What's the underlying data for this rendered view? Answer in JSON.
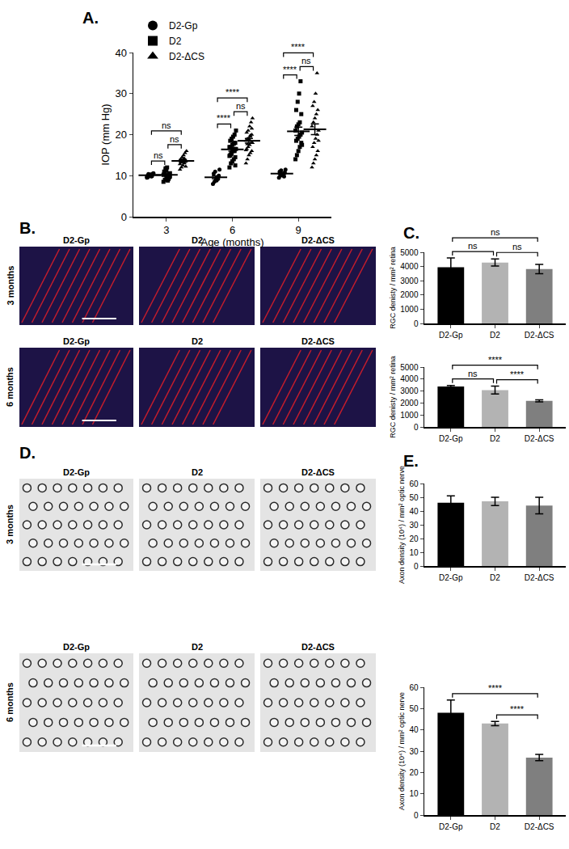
{
  "chart_data": [
    {
      "type": "scatter",
      "title": "A.",
      "xlabel": "Age (months)",
      "ylabel": "IOP (mm Hg)",
      "categories": [
        "3",
        "6",
        "9"
      ],
      "ylim": [
        0,
        40
      ],
      "yticks": [
        0,
        10,
        20,
        30,
        40
      ],
      "legend": "top left",
      "grid": false,
      "series": [
        {
          "name": "D2-Gp",
          "color": "#000000",
          "marker": "circle",
          "values": [
            [
              9.5,
              10,
              10.2,
              9.8,
              10.5,
              9.6,
              10.1,
              10.3,
              9.9,
              10.6,
              9.7,
              10.4
            ],
            [
              8,
              8.5,
              9,
              9.5,
              10,
              10.5,
              11,
              8.8,
              9.2,
              11.5
            ],
            [
              9.5,
              10,
              10.2,
              10.5,
              10.8,
              11,
              11.3,
              10.3,
              9.8,
              11.5
            ]
          ],
          "means": [
            10.1,
            9.6,
            10.5
          ],
          "sem": [
            0.1,
            0.35,
            0.2
          ]
        },
        {
          "name": "D2",
          "color": "#000000",
          "marker": "square",
          "values": [
            [
              8.5,
              9,
              9.5,
              10,
              10.5,
              11,
              11.5,
              12,
              9.2,
              9.8,
              10.2,
              10.8,
              11.2,
              8.8,
              9.6,
              10.4,
              11.8,
              10,
              9.4,
              10.6
            ],
            [
              12,
              13,
              13.5,
              14,
              14.5,
              15,
              15.5,
              16,
              16,
              16.5,
              17,
              17,
              17.5,
              18,
              18,
              18.5,
              19,
              19.5,
              20,
              21,
              14.8,
              15.2,
              16.3,
              17.8,
              12.5
            ],
            [
              14,
              15,
              16,
              17,
              18,
              18.5,
              19,
              19.5,
              20,
              20.5,
              21,
              22,
              22.5,
              23,
              25,
              26,
              28,
              30,
              33,
              17.5
            ]
          ],
          "means": [
            10.2,
            16.4,
            20.8
          ],
          "sem": [
            0.25,
            0.45,
            1.0
          ]
        },
        {
          "name": "D2-ΔCS",
          "color": "#000000",
          "marker": "triangle-up",
          "values": [
            [
              11.5,
              12,
              12.5,
              13,
              13.5,
              14,
              14.5,
              15,
              15.5,
              16,
              12.8,
              13.2,
              13.8,
              14.2,
              12.2
            ],
            [
              13,
              14,
              15,
              15.5,
              16,
              16.5,
              17,
              17.5,
              18,
              18,
              18.5,
              19,
              19,
              19.5,
              20,
              20.5,
              21,
              22,
              23,
              24,
              16.2,
              17.7,
              18.8,
              19.8,
              21.5
            ],
            [
              12,
              13,
              14,
              15,
              16,
              17,
              18,
              19,
              20,
              21,
              22,
              23,
              24,
              25,
              26,
              27,
              28,
              30,
              35,
              18.5
            ]
          ],
          "means": [
            13.6,
            18.5,
            21.3
          ],
          "sem": [
            0.35,
            0.55,
            1.3
          ]
        }
      ],
      "comparisons": [
        {
          "at": "3",
          "from": "D2-Gp",
          "to": "D2",
          "label": "ns"
        },
        {
          "at": "3",
          "from": "D2",
          "to": "D2-ΔCS",
          "label": "ns"
        },
        {
          "at": "3",
          "from": "D2-Gp",
          "to": "D2-ΔCS",
          "label": "ns"
        },
        {
          "at": "6",
          "from": "D2-Gp",
          "to": "D2",
          "label": "****"
        },
        {
          "at": "6",
          "from": "D2",
          "to": "D2-ΔCS",
          "label": "ns"
        },
        {
          "at": "6",
          "from": "D2-Gp",
          "to": "D2-ΔCS",
          "label": "****"
        },
        {
          "at": "9",
          "from": "D2-Gp",
          "to": "D2",
          "label": "****"
        },
        {
          "at": "9",
          "from": "D2",
          "to": "D2-ΔCS",
          "label": "ns"
        },
        {
          "at": "9",
          "from": "D2-Gp",
          "to": "D2-ΔCS",
          "label": "****"
        }
      ]
    },
    {
      "type": "bar",
      "title": "C.",
      "ylabel": "RGC denisty / mm² retina",
      "categories": [
        "D2-Gp",
        "D2",
        "D2-ΔCS"
      ],
      "values": [
        3950,
        4280,
        3820
      ],
      "errors": [
        650,
        250,
        330
      ],
      "colors": [
        "#000000",
        "#b3b3b3",
        "#7f7f7f"
      ],
      "ylim": [
        0,
        5000
      ],
      "yticks": [
        0,
        1000,
        2000,
        3000,
        4000,
        5000
      ],
      "grid": false,
      "comparisons": [
        {
          "from": "D2-Gp",
          "to": "D2",
          "label": "ns"
        },
        {
          "from": "D2",
          "to": "D2-ΔCS",
          "label": "ns"
        },
        {
          "from": "D2-Gp",
          "to": "D2-ΔCS",
          "label": "ns"
        }
      ]
    },
    {
      "type": "bar",
      "ylabel": "RGC denisty / mm² retina",
      "categories": [
        "D2-Gp",
        "D2",
        "D2-ΔCS"
      ],
      "values": [
        3370,
        3080,
        2180
      ],
      "errors": [
        100,
        330,
        80
      ],
      "colors": [
        "#000000",
        "#b3b3b3",
        "#7f7f7f"
      ],
      "ylim": [
        0,
        5000
      ],
      "yticks": [
        0,
        1000,
        2000,
        3000,
        4000,
        5000
      ],
      "grid": false,
      "comparisons": [
        {
          "from": "D2-Gp",
          "to": "D2",
          "label": "ns"
        },
        {
          "from": "D2",
          "to": "D2-ΔCS",
          "label": "****"
        },
        {
          "from": "D2-Gp",
          "to": "D2-ΔCS",
          "label": "****"
        }
      ]
    },
    {
      "type": "bar",
      "title": "E.",
      "ylabel": "Axon density (10⁴) / mm² optic nerve",
      "categories": [
        "D2-Gp",
        "D2",
        "D2-ΔCS"
      ],
      "values": [
        46,
        47,
        44
      ],
      "errors": [
        5,
        3,
        6
      ],
      "colors": [
        "#000000",
        "#b3b3b3",
        "#7f7f7f"
      ],
      "ylim": [
        0,
        60
      ],
      "yticks": [
        0,
        10,
        20,
        30,
        40,
        50,
        60
      ],
      "grid": false,
      "comparisons": []
    },
    {
      "type": "bar",
      "ylabel": "Axon density (10⁴) / mm² optic nerve",
      "categories": [
        "D2-Gp",
        "D2",
        "D2-ΔCS"
      ],
      "values": [
        48,
        43,
        27
      ],
      "errors": [
        6,
        1,
        1.5
      ],
      "colors": [
        "#000000",
        "#b3b3b3",
        "#7f7f7f"
      ],
      "ylim": [
        0,
        60
      ],
      "yticks": [
        0,
        10,
        20,
        30,
        40,
        50,
        60
      ],
      "grid": false,
      "comparisons": [
        {
          "from": "D2",
          "to": "D2-ΔCS",
          "label": "****"
        },
        {
          "from": "D2-Gp",
          "to": "D2-ΔCS",
          "label": "****"
        }
      ]
    }
  ],
  "image_panels": [
    {
      "title": "B.",
      "rows": [
        "3 months",
        "6 months"
      ],
      "columns": [
        "D2-Gp",
        "D2",
        "D2-ΔCS"
      ]
    },
    {
      "title": "D.",
      "rows": [
        "3 months",
        "6 months"
      ],
      "columns": [
        "D2-Gp",
        "D2",
        "D2-ΔCS"
      ]
    }
  ]
}
